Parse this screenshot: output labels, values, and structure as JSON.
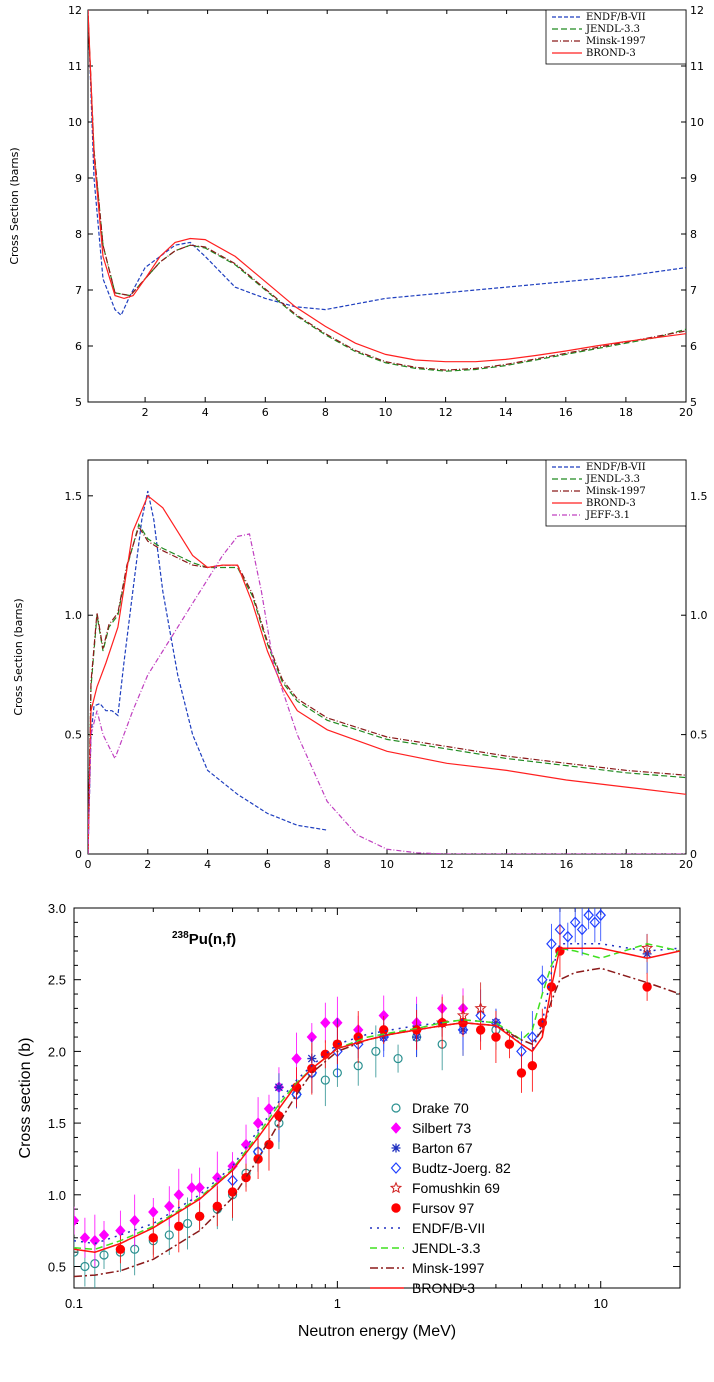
{
  "chart_data": [
    {
      "type": "line",
      "ylabel": "Cross Section (barns)",
      "xlim": [
        0.1,
        20
      ],
      "ylim": [
        5,
        12
      ],
      "xticks": [
        "2",
        "4",
        "6",
        "8",
        "10",
        "12",
        "14",
        "16",
        "18",
        "20"
      ],
      "yticks": [
        "5",
        "6",
        "7",
        "8",
        "9",
        "10",
        "11",
        "12"
      ],
      "series": [
        {
          "name": "ENDF/B-VII",
          "color": "#1f3fbf",
          "dash": "4,2",
          "x": [
            0.1,
            0.3,
            0.6,
            1.0,
            1.2,
            1.5,
            2.0,
            2.5,
            3.0,
            3.5,
            4.0,
            5.0,
            6.0,
            7.0,
            8.0,
            10,
            12,
            14,
            16,
            18,
            20
          ],
          "y": [
            12.0,
            9.0,
            7.2,
            6.65,
            6.55,
            6.9,
            7.4,
            7.6,
            7.8,
            7.85,
            7.6,
            7.05,
            6.85,
            6.7,
            6.65,
            6.85,
            6.95,
            7.05,
            7.15,
            7.25,
            7.4
          ]
        },
        {
          "name": "JENDL-3.3",
          "color": "#228b22",
          "dash": "6,3",
          "x": [
            0.1,
            0.3,
            0.6,
            1.0,
            1.5,
            2.0,
            2.5,
            3.0,
            3.5,
            4.0,
            5.0,
            6.0,
            7.0,
            8.0,
            9.0,
            10,
            11,
            12,
            13,
            14,
            15,
            16,
            17,
            18,
            19,
            20
          ],
          "y": [
            11.9,
            9.5,
            7.8,
            6.95,
            6.9,
            7.2,
            7.5,
            7.7,
            7.8,
            7.75,
            7.45,
            7.0,
            6.55,
            6.2,
            5.9,
            5.7,
            5.6,
            5.55,
            5.58,
            5.65,
            5.75,
            5.85,
            5.95,
            6.05,
            6.15,
            6.3
          ]
        },
        {
          "name": "Minsk-1997",
          "color": "#8b1a1a",
          "dash": "6,2,1,2",
          "x": [
            0.1,
            0.3,
            0.6,
            1.0,
            1.5,
            2.0,
            2.5,
            3.0,
            3.5,
            4.0,
            5.0,
            6.0,
            7.0,
            8.0,
            9.0,
            10,
            11,
            12,
            13,
            14,
            15,
            16,
            17,
            18,
            19,
            20
          ],
          "y": [
            11.9,
            9.5,
            7.8,
            6.95,
            6.9,
            7.2,
            7.5,
            7.7,
            7.8,
            7.77,
            7.47,
            7.02,
            6.57,
            6.22,
            5.92,
            5.72,
            5.62,
            5.57,
            5.6,
            5.67,
            5.77,
            5.87,
            5.97,
            6.07,
            6.17,
            6.27
          ]
        },
        {
          "name": "BROND-3",
          "color": "#ff2020",
          "dash": "",
          "x": [
            0.1,
            0.3,
            0.6,
            1.0,
            1.3,
            1.6,
            2.0,
            2.5,
            3.0,
            3.5,
            4.0,
            5.0,
            6.0,
            7.0,
            8.0,
            9.0,
            10,
            11,
            12,
            13,
            14,
            15,
            16,
            17,
            18,
            19,
            20
          ],
          "y": [
            12.0,
            9.4,
            7.6,
            6.9,
            6.85,
            6.9,
            7.2,
            7.6,
            7.85,
            7.92,
            7.9,
            7.6,
            7.15,
            6.7,
            6.35,
            6.05,
            5.85,
            5.75,
            5.72,
            5.72,
            5.76,
            5.83,
            5.91,
            6.0,
            6.08,
            6.15,
            6.22
          ]
        }
      ]
    },
    {
      "type": "line",
      "ylabel": "Cross Section (barns)",
      "xlim": [
        0,
        20
      ],
      "ylim": [
        0,
        1.65
      ],
      "xticks": [
        "0",
        "2",
        "4",
        "6",
        "8",
        "10",
        "12",
        "14",
        "16",
        "18",
        "20"
      ],
      "yticks": [
        "0",
        "0.5",
        "1.0",
        "1.5"
      ],
      "series": [
        {
          "name": "ENDF/B-VII",
          "color": "#1f3fbf",
          "dash": "4,2",
          "x": [
            0,
            0.1,
            0.2,
            0.4,
            0.6,
            0.8,
            1.0,
            1.2,
            1.5,
            1.8,
            2.0,
            2.2,
            2.5,
            3.0,
            3.5,
            4.0,
            5.0,
            6.0,
            7.0,
            8.0
          ],
          "y": [
            0,
            0.5,
            0.62,
            0.63,
            0.6,
            0.6,
            0.58,
            0.8,
            1.1,
            1.4,
            1.52,
            1.4,
            1.1,
            0.75,
            0.5,
            0.35,
            0.25,
            0.17,
            0.12,
            0.1
          ]
        },
        {
          "name": "JENDL-3.3",
          "color": "#228b22",
          "dash": "6,3",
          "x": [
            0,
            0.1,
            0.3,
            0.5,
            0.7,
            1.0,
            1.3,
            1.7,
            2.0,
            2.5,
            3.0,
            3.5,
            4.0,
            4.5,
            5.0,
            5.5,
            6.0,
            6.5,
            7.0,
            8.0,
            10,
            12,
            14,
            16,
            18,
            20
          ],
          "y": [
            0,
            0.7,
            1.0,
            0.85,
            0.95,
            1.0,
            1.2,
            1.38,
            1.32,
            1.28,
            1.25,
            1.22,
            1.2,
            1.2,
            1.2,
            1.08,
            0.88,
            0.72,
            0.64,
            0.56,
            0.48,
            0.44,
            0.4,
            0.37,
            0.34,
            0.32
          ]
        },
        {
          "name": "Minsk-1997",
          "color": "#8b1a1a",
          "dash": "6,2,1,2",
          "x": [
            0,
            0.1,
            0.3,
            0.5,
            0.7,
            1.0,
            1.3,
            1.7,
            2.0,
            2.5,
            3.0,
            3.5,
            4.0,
            4.5,
            5.0,
            5.5,
            6.0,
            6.5,
            7.0,
            8.0,
            10,
            12,
            14,
            16,
            18,
            20
          ],
          "y": [
            0,
            0.72,
            1.01,
            0.86,
            0.96,
            1.01,
            1.21,
            1.37,
            1.31,
            1.27,
            1.24,
            1.21,
            1.2,
            1.21,
            1.21,
            1.09,
            0.89,
            0.73,
            0.65,
            0.57,
            0.49,
            0.45,
            0.41,
            0.38,
            0.35,
            0.33
          ]
        },
        {
          "name": "BROND-3",
          "color": "#ff2020",
          "dash": "",
          "x": [
            0,
            0.1,
            0.3,
            0.6,
            1.0,
            1.5,
            2.0,
            2.5,
            3.0,
            3.5,
            4.0,
            4.5,
            5.0,
            5.5,
            6.0,
            6.5,
            7.0,
            8.0,
            10,
            12,
            14,
            16,
            18,
            20
          ],
          "y": [
            0,
            0.6,
            0.7,
            0.8,
            0.95,
            1.35,
            1.5,
            1.45,
            1.35,
            1.25,
            1.2,
            1.21,
            1.21,
            1.05,
            0.85,
            0.7,
            0.6,
            0.52,
            0.43,
            0.38,
            0.35,
            0.31,
            0.28,
            0.25
          ]
        },
        {
          "name": "JEFF-3.1",
          "color": "#c040c0",
          "dash": "5,2,1,2",
          "x": [
            0,
            0.1,
            0.3,
            0.5,
            0.7,
            0.9,
            1.2,
            1.5,
            2.0,
            2.5,
            3.0,
            3.5,
            4.0,
            4.5,
            5.0,
            5.4,
            5.8,
            6.2,
            7.0,
            8.0,
            9.0,
            10,
            11,
            12,
            14,
            16,
            18,
            20
          ],
          "y": [
            0,
            0.5,
            0.6,
            0.5,
            0.45,
            0.4,
            0.5,
            0.6,
            0.75,
            0.85,
            0.95,
            1.05,
            1.15,
            1.25,
            1.33,
            1.34,
            1.1,
            0.8,
            0.5,
            0.22,
            0.08,
            0.02,
            0.005,
            0.0,
            0,
            0,
            0,
            0
          ]
        }
      ]
    },
    {
      "type": "scatter",
      "title": "Pu(n,f)",
      "title_sup": "238",
      "xlabel": "Neutron energy (MeV)",
      "ylabel": "Cross section (b)",
      "xscale": "log",
      "xlim": [
        0.1,
        20
      ],
      "ylim": [
        0.35,
        3.0
      ],
      "xticks": [
        "0.1",
        "1",
        "10"
      ],
      "yticks": [
        "0.5",
        "1.0",
        "1.5",
        "2.0",
        "2.5",
        "3.0"
      ],
      "series": [
        {
          "name": "Drake 70",
          "color": "#2a9090",
          "marker": "circle-open",
          "x": [
            0.1,
            0.11,
            0.12,
            0.13,
            0.15,
            0.17,
            0.2,
            0.23,
            0.27,
            0.3,
            0.35,
            0.4,
            0.45,
            0.5,
            0.6,
            0.7,
            0.8,
            0.9,
            1.0,
            1.2,
            1.4,
            1.7,
            2.0,
            2.5,
            3.0,
            4.0
          ],
          "y": [
            0.6,
            0.5,
            0.52,
            0.58,
            0.6,
            0.62,
            0.68,
            0.72,
            0.8,
            0.85,
            0.9,
            1.0,
            1.15,
            1.3,
            1.5,
            1.7,
            1.85,
            1.8,
            1.85,
            1.9,
            2.0,
            1.95,
            2.1,
            2.05,
            2.2,
            2.15
          ]
        },
        {
          "name": "Silbert 73",
          "color": "#ff00ff",
          "marker": "diamond-filled",
          "x": [
            0.1,
            0.11,
            0.12,
            0.13,
            0.15,
            0.17,
            0.2,
            0.23,
            0.25,
            0.28,
            0.3,
            0.35,
            0.4,
            0.45,
            0.5,
            0.55,
            0.6,
            0.7,
            0.8,
            0.9,
            1.0,
            1.2,
            1.5,
            2.0,
            2.5,
            3.0
          ],
          "y": [
            0.82,
            0.7,
            0.68,
            0.72,
            0.75,
            0.82,
            0.88,
            0.92,
            1.0,
            1.05,
            1.05,
            1.12,
            1.2,
            1.35,
            1.5,
            1.6,
            1.75,
            1.95,
            2.1,
            2.2,
            2.2,
            2.15,
            2.25,
            2.2,
            2.3,
            2.3
          ]
        },
        {
          "name": "Barton 67",
          "color": "#2030c0",
          "marker": "star",
          "x": [
            0.6,
            0.8,
            1.0,
            1.5,
            2.0,
            3.0,
            4.0,
            15.0
          ],
          "y": [
            1.75,
            1.95,
            2.05,
            2.1,
            2.1,
            2.15,
            2.2,
            2.68
          ]
        },
        {
          "name": "Budtz-Joerg. 82",
          "color": "#2040ff",
          "marker": "diamond-open",
          "x": [
            0.4,
            0.5,
            0.6,
            0.7,
            0.8,
            1.0,
            1.2,
            1.5,
            2.0,
            2.5,
            3.0,
            3.5,
            4.0,
            5.0,
            5.5,
            6.0,
            6.5,
            7.0,
            7.5,
            8.0,
            8.5,
            9.0,
            9.5,
            10.0
          ],
          "y": [
            1.1,
            1.3,
            1.55,
            1.7,
            1.85,
            2.0,
            2.05,
            2.1,
            2.15,
            2.2,
            2.15,
            2.25,
            2.2,
            2.0,
            2.1,
            2.5,
            2.75,
            2.85,
            2.8,
            2.9,
            2.85,
            2.95,
            2.9,
            2.95
          ]
        },
        {
          "name": "Fomushkin 69",
          "color": "#d02020",
          "marker": "star-open",
          "x": [
            2.5,
            3.0,
            3.5,
            15.0
          ],
          "y": [
            2.2,
            2.25,
            2.3,
            2.72
          ]
        },
        {
          "name": "Fursov 97",
          "color": "#ff0000",
          "marker": "circle-filled",
          "x": [
            0.15,
            0.2,
            0.25,
            0.3,
            0.35,
            0.4,
            0.45,
            0.5,
            0.55,
            0.6,
            0.7,
            0.8,
            0.9,
            1.0,
            1.2,
            1.5,
            2.0,
            2.5,
            3.0,
            3.5,
            4.0,
            4.5,
            5.0,
            5.5,
            6.0,
            6.5,
            7.0,
            15.0
          ],
          "y": [
            0.62,
            0.7,
            0.78,
            0.85,
            0.92,
            1.02,
            1.12,
            1.25,
            1.35,
            1.55,
            1.75,
            1.88,
            1.98,
            2.05,
            2.1,
            2.15,
            2.15,
            2.2,
            2.2,
            2.15,
            2.1,
            2.05,
            1.85,
            1.9,
            2.2,
            2.45,
            2.7,
            2.45
          ]
        }
      ],
      "curves": [
        {
          "name": "ENDF/B-VII",
          "color": "#2030c0",
          "dash": "2,5",
          "x": [
            0.1,
            0.12,
            0.15,
            0.2,
            0.3,
            0.4,
            0.5,
            0.6,
            0.7,
            0.8,
            1.0,
            1.3,
            1.6,
            2.0,
            2.5,
            3.0,
            4.0,
            5.0,
            5.5,
            6.0,
            6.5,
            7.0,
            8.0,
            10,
            15,
            20
          ],
          "y": [
            0.68,
            0.66,
            0.72,
            0.8,
            1.0,
            1.2,
            1.45,
            1.65,
            1.8,
            1.9,
            2.05,
            2.12,
            2.15,
            2.18,
            2.2,
            2.22,
            2.2,
            2.05,
            2.0,
            2.2,
            2.55,
            2.75,
            2.75,
            2.75,
            2.7,
            2.72
          ]
        },
        {
          "name": "JENDL-3.3",
          "color": "#40e020",
          "dash": "7,4",
          "x": [
            0.1,
            0.12,
            0.15,
            0.2,
            0.3,
            0.4,
            0.5,
            0.6,
            0.7,
            0.8,
            1.0,
            1.3,
            1.6,
            2.0,
            2.5,
            3.0,
            4.0,
            5.0,
            5.5,
            6.0,
            6.5,
            7.0,
            8.0,
            10,
            15,
            20
          ],
          "y": [
            0.63,
            0.62,
            0.68,
            0.78,
            0.98,
            1.18,
            1.42,
            1.63,
            1.78,
            1.88,
            2.02,
            2.1,
            2.13,
            2.16,
            2.2,
            2.22,
            2.2,
            2.08,
            2.15,
            2.4,
            2.6,
            2.72,
            2.7,
            2.65,
            2.75,
            2.7
          ]
        },
        {
          "name": "Minsk-1997",
          "color": "#8b1a1a",
          "dash": "8,3,2,3",
          "x": [
            0.1,
            0.12,
            0.15,
            0.2,
            0.3,
            0.4,
            0.5,
            0.6,
            0.7,
            0.8,
            1.0,
            1.3,
            1.6,
            2.0,
            2.5,
            3.0,
            4.0,
            5.0,
            5.5,
            6.0,
            6.5,
            7.0,
            8.0,
            10,
            15,
            20
          ],
          "y": [
            0.43,
            0.44,
            0.47,
            0.55,
            0.75,
            0.98,
            1.25,
            1.5,
            1.7,
            1.85,
            2.0,
            2.08,
            2.12,
            2.15,
            2.18,
            2.2,
            2.18,
            2.08,
            2.05,
            2.15,
            2.35,
            2.5,
            2.55,
            2.58,
            2.48,
            2.4
          ]
        },
        {
          "name": "BROND-3",
          "color": "#ff1010",
          "dash": "",
          "x": [
            0.1,
            0.12,
            0.15,
            0.2,
            0.3,
            0.4,
            0.5,
            0.6,
            0.7,
            0.8,
            1.0,
            1.3,
            1.6,
            2.0,
            2.5,
            3.0,
            4.0,
            5.0,
            5.5,
            6.0,
            6.5,
            7.0,
            8.0,
            10,
            15,
            20
          ],
          "y": [
            0.62,
            0.6,
            0.66,
            0.77,
            0.97,
            1.17,
            1.4,
            1.6,
            1.77,
            1.88,
            2.02,
            2.08,
            2.12,
            2.15,
            2.18,
            2.2,
            2.18,
            2.05,
            2.0,
            2.1,
            2.45,
            2.72,
            2.72,
            2.72,
            2.65,
            2.7
          ]
        }
      ]
    }
  ]
}
